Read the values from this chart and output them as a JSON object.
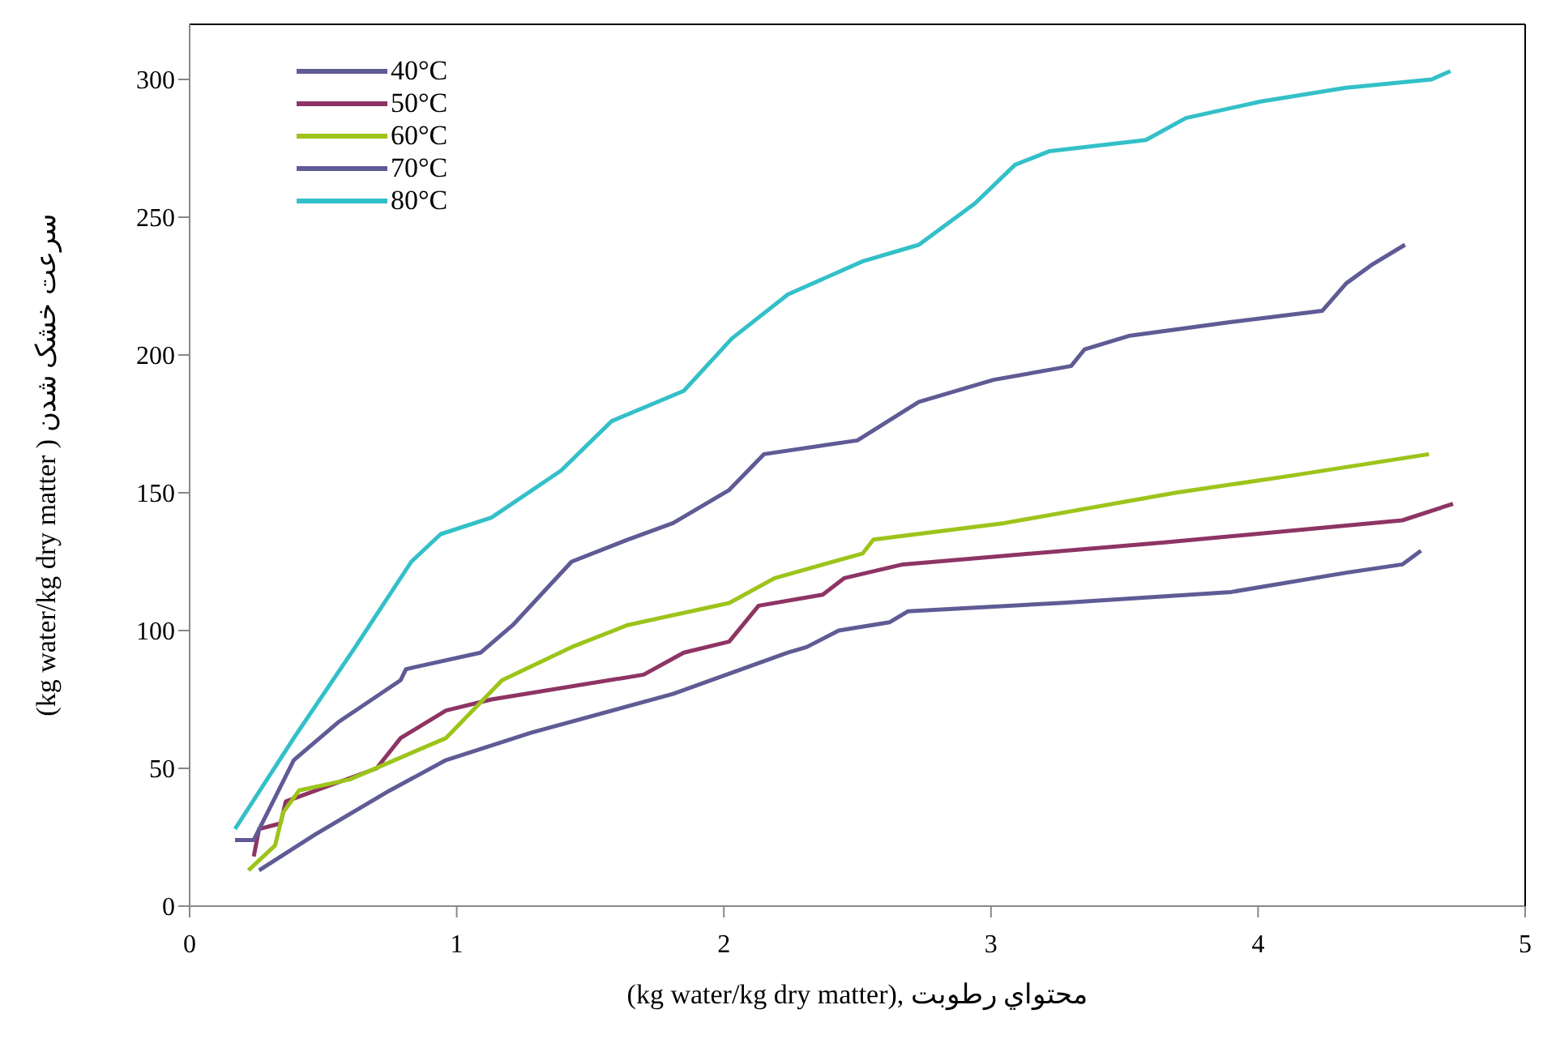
{
  "chart_data": {
    "type": "line",
    "xlabel": "(kg water/kg dry matter), محتواي رطوبت",
    "ylabel": "(kg water/kg dry matter ) سرعت خشک شدن",
    "xlim": [
      0,
      5
    ],
    "xticks": [
      0,
      1,
      2,
      3,
      4,
      5
    ],
    "ylim": [
      0,
      320
    ],
    "yticks": [
      0,
      50,
      100,
      150,
      200,
      250,
      300
    ],
    "grid": false,
    "legend": "top left",
    "marker": "none",
    "line_style": "solid",
    "series": [
      {
        "name": "40°C",
        "color": "#5f5b95",
        "x": [
          0.26,
          0.47,
          0.75,
          0.96,
          1.28,
          1.81,
          2.24,
          2.31,
          2.43,
          2.62,
          2.69,
          3.26,
          3.9,
          4.33,
          4.54,
          4.61
        ],
        "values": [
          13,
          26,
          42,
          53,
          63,
          77,
          92,
          94,
          100,
          103,
          107,
          110,
          114,
          121,
          124,
          129
        ]
      },
      {
        "name": "50°C",
        "color": "#8e3464",
        "x": [
          0.24,
          0.26,
          0.34,
          0.36,
          0.7,
          0.79,
          0.96,
          1.13,
          1.7,
          1.85,
          2.02,
          2.13,
          2.37,
          2.45,
          2.67,
          3.65,
          4.54,
          4.73
        ],
        "values": [
          18,
          28,
          30,
          38,
          50,
          61,
          71,
          75,
          84,
          92,
          96,
          109,
          113,
          119,
          124,
          132,
          140,
          146
        ]
      },
      {
        "name": "60°C",
        "color": "#9dc41a",
        "x": [
          0.22,
          0.32,
          0.35,
          0.41,
          0.6,
          0.96,
          1.17,
          1.43,
          1.64,
          2.02,
          2.19,
          2.52,
          2.56,
          3.05,
          3.69,
          4.11,
          4.64
        ],
        "values": [
          13,
          22,
          34,
          42,
          46,
          61,
          82,
          94,
          102,
          110,
          119,
          128,
          133,
          139,
          150,
          156,
          164
        ]
      },
      {
        "name": "70°C",
        "color": "#5f5b95",
        "x": [
          0.17,
          0.24,
          0.39,
          0.56,
          0.79,
          0.81,
          1.09,
          1.21,
          1.43,
          1.64,
          1.81,
          2.02,
          2.15,
          2.5,
          2.73,
          3.01,
          3.3,
          3.35,
          3.52,
          3.9,
          4.24,
          4.33,
          4.43,
          4.55
        ],
        "values": [
          24,
          24,
          53,
          67,
          82,
          86,
          92,
          102,
          125,
          133,
          139,
          151,
          164,
          169,
          183,
          191,
          196,
          202,
          207,
          212,
          216,
          226,
          233,
          240
        ]
      },
      {
        "name": "80°C",
        "color": "#33c0c8",
        "x": [
          0.17,
          0.39,
          0.62,
          0.83,
          0.94,
          1.13,
          1.39,
          1.58,
          1.85,
          2.03,
          2.24,
          2.52,
          2.73,
          2.94,
          3.09,
          3.22,
          3.58,
          3.73,
          4.01,
          4.33,
          4.65,
          4.72
        ],
        "values": [
          28,
          61,
          94,
          125,
          135,
          141,
          158,
          176,
          187,
          206,
          222,
          234,
          240,
          255,
          269,
          274,
          278,
          286,
          292,
          297,
          300,
          303
        ]
      }
    ]
  }
}
